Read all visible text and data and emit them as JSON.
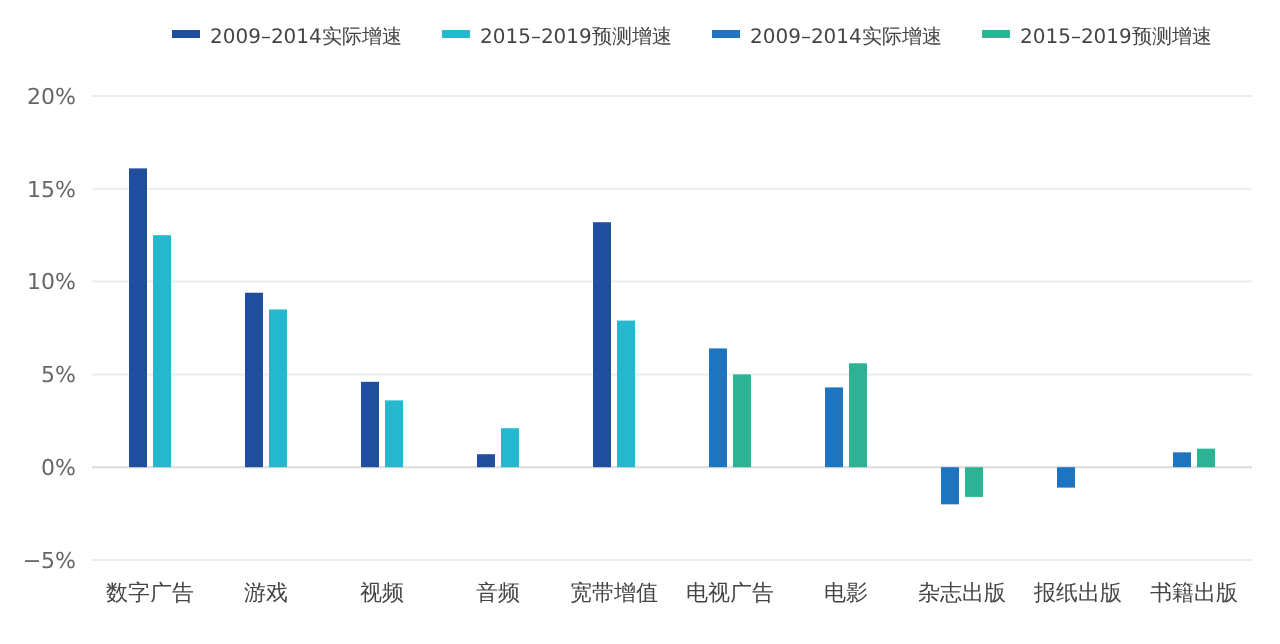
{
  "chart_data": {
    "type": "bar",
    "categories": [
      "数字广告",
      "游戏",
      "视频",
      "音频",
      "宽带增值",
      "电视广告",
      "电影",
      "杂志出版",
      "报纸出版",
      "书籍出版"
    ],
    "series": [
      {
        "name": "2009–2014实际增速",
        "color": "#1f4e9c",
        "values": [
          16.1,
          9.4,
          4.6,
          0.7,
          13.2,
          null,
          null,
          null,
          null,
          null
        ]
      },
      {
        "name": "2015–2019预测增速",
        "color": "#25b9cf",
        "values": [
          12.5,
          8.5,
          3.6,
          2.1,
          7.9,
          null,
          null,
          null,
          null,
          null
        ]
      },
      {
        "name": "2009–2014实际增速",
        "color": "#1f74bf",
        "values": [
          null,
          null,
          null,
          null,
          null,
          6.4,
          4.3,
          -2.0,
          -1.1,
          0.8
        ]
      },
      {
        "name": "2015–2019预测增速",
        "color": "#2db394",
        "values": [
          null,
          null,
          null,
          null,
          null,
          5.0,
          5.6,
          -1.6,
          null,
          1.0
        ]
      }
    ],
    "ylim": [
      -5,
      20
    ],
    "yticks": [
      {
        "value": -5,
        "label": "−5%"
      },
      {
        "value": 0,
        "label": "0%"
      },
      {
        "value": 5,
        "label": "5%"
      },
      {
        "value": 10,
        "label": "10%"
      },
      {
        "value": 15,
        "label": "15%"
      },
      {
        "value": 20,
        "label": "20%"
      }
    ],
    "grid": "y",
    "legend": "top right"
  }
}
